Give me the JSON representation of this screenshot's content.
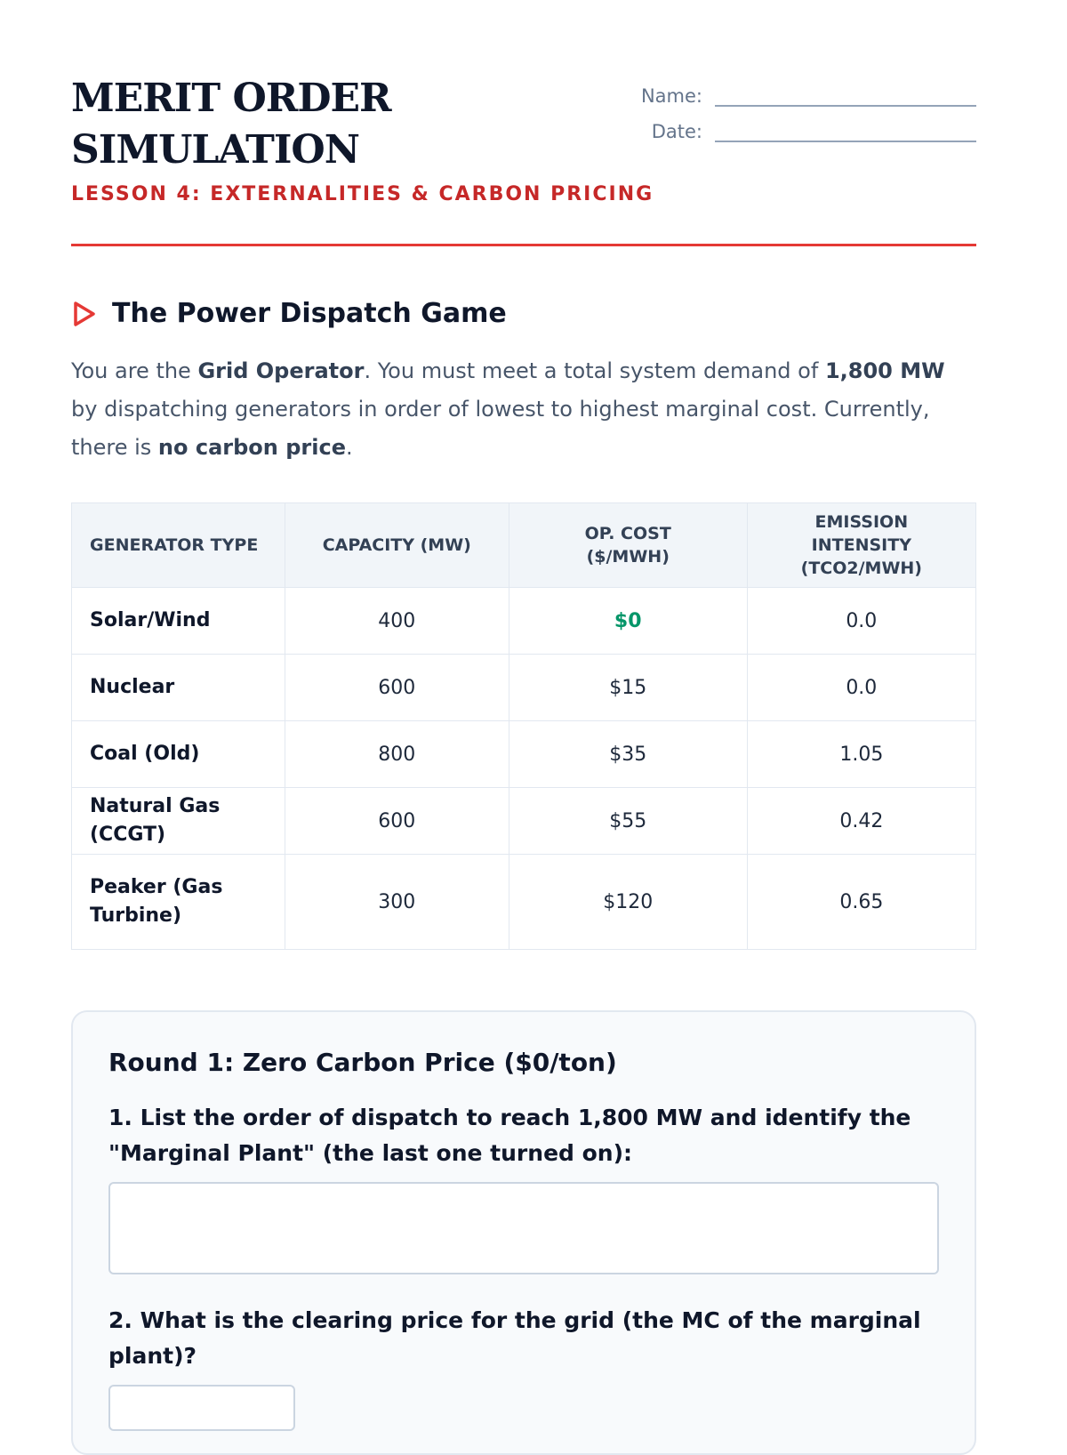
{
  "header": {
    "title": "MERIT ORDER SIMULATION",
    "subtitle": "LESSON 4: EXTERNALITIES & CARBON PRICING",
    "name_label": "Name:",
    "date_label": "Date:"
  },
  "section": {
    "icon": "play-triangle-icon",
    "title": "The Power Dispatch Game",
    "intro": [
      "You are the ",
      "Grid Operator",
      ". You must meet a total system demand of ",
      "1,800 MW",
      " by dispatching generators in order of lowest to highest marginal cost. Currently, there is ",
      "no carbon price",
      "."
    ]
  },
  "table": {
    "headers": [
      "Generator Type",
      "Capacity (MW)",
      "Op. Cost ($/MWh)",
      "Emission Intensity (tCO2/MWh)"
    ],
    "rows": [
      [
        "Solar/Wind",
        "400",
        "$0",
        "0.0"
      ],
      [
        "Nuclear",
        "600",
        "$15",
        "0.0"
      ],
      [
        "Coal (Old)",
        "800",
        "$35",
        "1.05"
      ],
      [
        "Natural Gas (CCGT)",
        "600",
        "$55",
        "0.42"
      ],
      [
        "Peaker (Gas Turbine)",
        "300",
        "$120",
        "0.65"
      ]
    ]
  },
  "round1": {
    "title": "Round 1: Zero Carbon Price ($0/ton)",
    "q1": "1. List the order of dispatch to reach 1,800 MW and identify the \"Marginal Plant\" (the last one turned on):",
    "q2": "2. What is the clearing price for the grid (the MC of the marginal plant)?"
  },
  "colors": {
    "accent": "#e53935",
    "positive": "#059669"
  }
}
